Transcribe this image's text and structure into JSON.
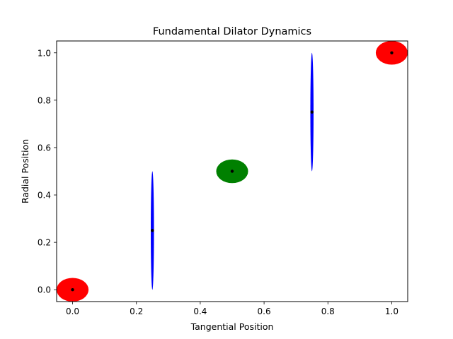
{
  "chart_data": {
    "type": "scatter",
    "title": "Fundamental Dilator Dynamics",
    "xlabel": "Tangential Position",
    "ylabel": "Radial Position",
    "xlim": [
      -0.05,
      1.05
    ],
    "ylim": [
      -0.05,
      1.05
    ],
    "xticks": [
      "0.0",
      "0.2",
      "0.4",
      "0.6",
      "0.8",
      "1.0"
    ],
    "yticks": [
      "0.0",
      "0.2",
      "0.4",
      "0.6",
      "0.8",
      "1.0"
    ],
    "grid": false,
    "points": [
      {
        "x": 0.0,
        "y": 0.0,
        "ellipse_width": 0.1,
        "ellipse_height": 0.1,
        "color": "#ff0000"
      },
      {
        "x": 0.25,
        "y": 0.25,
        "ellipse_width": 0.01,
        "ellipse_height": 0.5,
        "color": "#0000ff"
      },
      {
        "x": 0.5,
        "y": 0.5,
        "ellipse_width": 0.1,
        "ellipse_height": 0.1,
        "color": "#008000"
      },
      {
        "x": 0.75,
        "y": 0.75,
        "ellipse_width": 0.01,
        "ellipse_height": 0.5,
        "color": "#0000ff"
      },
      {
        "x": 1.0,
        "y": 1.0,
        "ellipse_width": 0.1,
        "ellipse_height": 0.1,
        "color": "#ff0000"
      }
    ],
    "marker_color": "#000000"
  }
}
